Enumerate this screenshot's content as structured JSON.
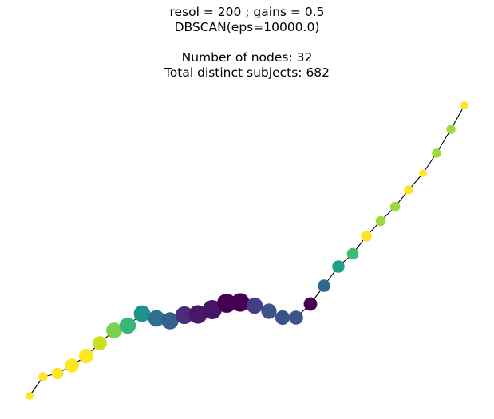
{
  "title": {
    "line1": "resol = 200 ; gains = 0.5",
    "line2": "DBSCAN(eps=10000.0)",
    "line3": "Number of nodes: 32",
    "line4": "Total distinct subjects: 682"
  },
  "graph": {
    "edge_color": "#000000",
    "node_count": 32,
    "nodes": [
      {
        "size": 1,
        "color": "#fde725"
      },
      {
        "size": 2,
        "color": "#fde725"
      },
      {
        "size": 5,
        "color": "#fde725"
      },
      {
        "size": 9,
        "color": "#fde725"
      },
      {
        "size": 10,
        "color": "#fde725"
      },
      {
        "size": 9,
        "color": "#c8e020"
      },
      {
        "size": 13,
        "color": "#7ad151"
      },
      {
        "size": 14,
        "color": "#35b779"
      },
      {
        "size": 15,
        "color": "#21918c"
      },
      {
        "size": 15,
        "color": "#2c728e"
      },
      {
        "size": 16,
        "color": "#355f8d"
      },
      {
        "size": 18,
        "color": "#472d7b"
      },
      {
        "size": 20,
        "color": "#48186a"
      },
      {
        "size": 22,
        "color": "#481467"
      },
      {
        "size": 22,
        "color": "#440154"
      },
      {
        "size": 20,
        "color": "#440154"
      },
      {
        "size": 14,
        "color": "#433e85"
      },
      {
        "size": 12,
        "color": "#3b528b"
      },
      {
        "size": 10,
        "color": "#3b528b"
      },
      {
        "size": 9,
        "color": "#3b528b"
      },
      {
        "size": 8,
        "color": "#440154"
      },
      {
        "size": 6,
        "color": "#31688e"
      },
      {
        "size": 6,
        "color": "#1f9e89"
      },
      {
        "size": 5,
        "color": "#3dbc74"
      },
      {
        "size": 4,
        "color": "#fde725"
      },
      {
        "size": 3,
        "color": "#9bd93c"
      },
      {
        "size": 3,
        "color": "#9bd93c"
      },
      {
        "size": 2,
        "color": "#fde725"
      },
      {
        "size": 1,
        "color": "#fde725"
      },
      {
        "size": 2,
        "color": "#9bd93c"
      },
      {
        "size": 2,
        "color": "#9bd93c"
      },
      {
        "size": 1,
        "color": "#fde725"
      }
    ]
  }
}
